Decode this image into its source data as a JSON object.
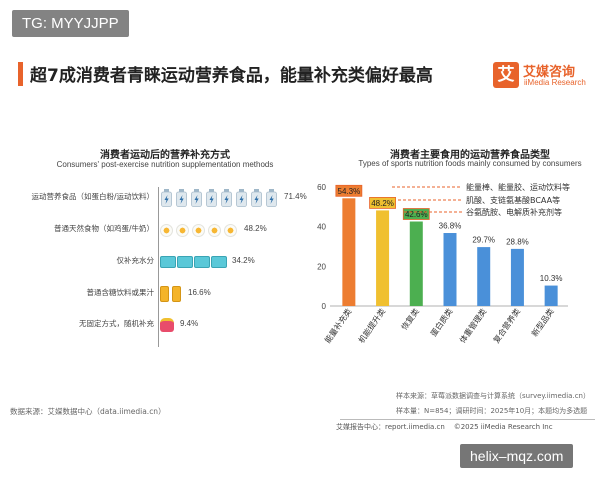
{
  "watermark_top": "TG: MYYJJPP",
  "watermark_bottom": "helix–mqz.com",
  "main_title": "超7成消费者青睐运动营养食品，能量补充类偏好最高",
  "logo": {
    "mark": "艾",
    "name_cn": "艾媒咨询",
    "name_en": "iiMedia Research",
    "color": "#e8632b"
  },
  "left_panel": {
    "title": "消费者运动后的营养补充方式",
    "subtitle": "Consumers' post-exercise nutrition supplementation methods",
    "rows": [
      {
        "label": "运动营养食品（如蛋白粉/运动饮料）",
        "value": 71.4,
        "value_label": "71.4%",
        "icon": "bottle-icon",
        "icon_count": 8
      },
      {
        "label": "普通天然食物（如鸡蛋/牛奶）",
        "value": 48.2,
        "value_label": "48.2%",
        "icon": "egg-icon",
        "icon_count": 5
      },
      {
        "label": "仅补充水分",
        "value": 34.2,
        "value_label": "34.2%",
        "icon": "water-icon",
        "icon_count": 4
      },
      {
        "label": "普通含糖饮料或果汁",
        "value": 16.6,
        "value_label": "16.6%",
        "icon": "can-icon",
        "icon_count": 2
      },
      {
        "label": "无固定方式，随机补充",
        "value": 9.4,
        "value_label": "9.4%",
        "icon": "bag-icon",
        "icon_count": 1
      }
    ],
    "source": "数据来源：艾媒数据中心（data.iimedia.cn）"
  },
  "chart_data": {
    "type": "bar",
    "title": "消费者主要食用的运动营养食品类型",
    "subtitle": "Types of sports nutrition foods mainly consumed by consumers",
    "categories": [
      "能量补充类",
      "机能提升类",
      "恢复类",
      "蛋白质类",
      "体重管理类",
      "复合营养类",
      "新型品类"
    ],
    "values": [
      54.3,
      48.2,
      42.6,
      36.8,
      29.7,
      28.8,
      10.3
    ],
    "value_labels": [
      "54.3%",
      "48.2%",
      "42.6%",
      "36.8%",
      "29.7%",
      "28.8%",
      "10.3%"
    ],
    "colors": [
      "#ed7d31",
      "#f0c030",
      "#4caf50",
      "#4a90d9",
      "#4a90d9",
      "#4a90d9",
      "#4a90d9"
    ],
    "ylim": [
      0,
      60
    ],
    "yticks": [
      0,
      20,
      40,
      60
    ],
    "grid": false,
    "legend": [
      {
        "label": "能量棒、能量胶、运动饮料等",
        "category": "能量补充类"
      },
      {
        "label": "肌酸、支链氨基酸BCAA等",
        "category": "机能提升类"
      },
      {
        "label": "谷氨酰胺、电解质补充剂等",
        "category": "恢复类"
      }
    ],
    "legend_placement": "top-right",
    "label_box_color": "#e8632b"
  },
  "notes": {
    "sample_source": "样本来源：草莓派数据调查与计算系统（survey.iimedia.cn）",
    "sample_size": "样本量：N=854；调研时间：2025年10月；本题均为多选题"
  },
  "footer": {
    "report_site": "艾媒报告中心：report.iimedia.cn",
    "copyright": "©2025  iiMedia Research  Inc"
  }
}
